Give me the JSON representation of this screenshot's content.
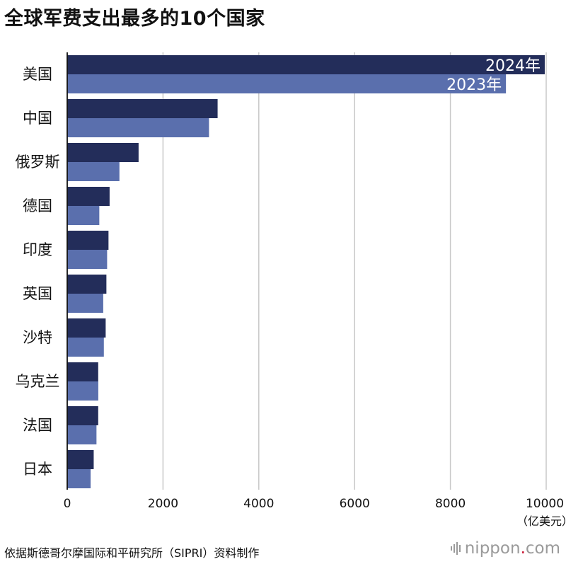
{
  "title": "全球军费支出最多的10个国家",
  "source": "依据斯德哥尔摩国际和平研究所（SIPRI）资料制作",
  "brand": {
    "prefix": "nippon",
    "dot": ".",
    "suffix": "com",
    "icon": "sound-bars-icon"
  },
  "colors": {
    "series_2024": "#232d5a",
    "series_2023": "#5a6fad",
    "grid": "#c8c8c8"
  },
  "chart_data": {
    "type": "bar",
    "orientation": "horizontal",
    "categories": [
      "美国",
      "中国",
      "俄罗斯",
      "德国",
      "印度",
      "英国",
      "沙特",
      "乌克兰",
      "法国",
      "日本"
    ],
    "series": [
      {
        "name": "2024年",
        "values": [
          9970,
          3140,
          1490,
          885,
          862,
          818,
          803,
          647,
          647,
          553
        ]
      },
      {
        "name": "2023年",
        "values": [
          9160,
          2960,
          1090,
          670,
          833,
          752,
          765,
          649,
          611,
          489
        ]
      }
    ],
    "xticks": [
      "0",
      "2000",
      "4000",
      "6000",
      "8000",
      "10000"
    ],
    "xlim": [
      0,
      10000
    ],
    "unit": "（亿美元）",
    "grid": true
  }
}
